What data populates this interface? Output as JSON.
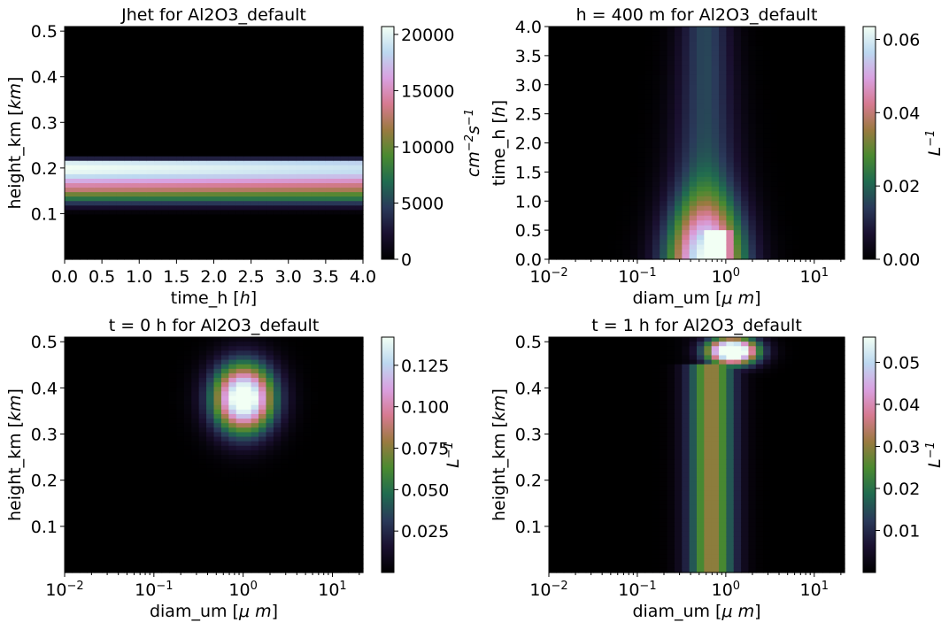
{
  "chart_data": [
    {
      "type": "heatmap",
      "title": "Jhet for Al2O3_default",
      "xlabel": "time_h [$h$]",
      "ylabel": "height_km [$km$]",
      "x_scale": "linear",
      "xlim": [
        0.0,
        4.0
      ],
      "ylim": [
        0.0,
        0.51
      ],
      "xticks": [
        "0.0",
        "0.5",
        "1.0",
        "1.5",
        "2.0",
        "2.5",
        "3.0",
        "3.5",
        "4.0"
      ],
      "xtick_values": [
        0.0,
        0.5,
        1.0,
        1.5,
        2.0,
        2.5,
        3.0,
        3.5,
        4.0
      ],
      "yticks": [
        "0.1",
        "0.2",
        "0.3",
        "0.4",
        "0.5"
      ],
      "ytick_values": [
        0.1,
        0.2,
        0.3,
        0.4,
        0.5
      ],
      "colorbar": {
        "label": "cm^{-2}s^{-1}",
        "min": 0,
        "max": 20700,
        "ticks": [
          "0",
          "5000",
          "10000",
          "15000",
          "20000"
        ],
        "tick_values": [
          0,
          5000,
          10000,
          15000,
          20000
        ]
      }
    },
    {
      "type": "heatmap",
      "title": "h = 400 m for Al2O3_default",
      "xlabel": "diam_um [$\\mu m$]",
      "ylabel": "time_h [$h$]",
      "x_scale": "log",
      "xlim": [
        0.01,
        22
      ],
      "ylim": [
        0.0,
        4.0
      ],
      "xticks": [
        "10^{-2}",
        "10^{-1}",
        "10^{0}",
        "10^{1}"
      ],
      "xtick_values": [
        0.01,
        0.1,
        1,
        10
      ],
      "yticks": [
        "0.0",
        "0.5",
        "1.0",
        "1.5",
        "2.0",
        "2.5",
        "3.0",
        "3.5",
        "4.0"
      ],
      "ytick_values": [
        0.0,
        0.5,
        1.0,
        1.5,
        2.0,
        2.5,
        3.0,
        3.5,
        4.0
      ],
      "colorbar": {
        "label": "L^{-1}",
        "min": 0,
        "max": 0.0635,
        "ticks": [
          "0.00",
          "0.02",
          "0.04",
          "0.06"
        ],
        "tick_values": [
          0.0,
          0.02,
          0.04,
          0.06
        ]
      }
    },
    {
      "type": "heatmap",
      "title": "t = 0 h for Al2O3_default",
      "xlabel": "diam_um [$\\mu m$]",
      "ylabel": "height_km [$km$]",
      "x_scale": "log",
      "xlim": [
        0.01,
        22
      ],
      "ylim": [
        0.0,
        0.51
      ],
      "xticks": [
        "10^{-2}",
        "10^{-1}",
        "10^{0}",
        "10^{1}"
      ],
      "xtick_values": [
        0.01,
        0.1,
        1,
        10
      ],
      "yticks": [
        "0.1",
        "0.2",
        "0.3",
        "0.4",
        "0.5"
      ],
      "ytick_values": [
        0.1,
        0.2,
        0.3,
        0.4,
        0.5
      ],
      "colorbar": {
        "label": "L^{-1}",
        "min": 0.0,
        "max": 0.142,
        "ticks": [
          "0.025",
          "0.050",
          "0.075",
          "0.100",
          "0.125"
        ],
        "tick_values": [
          0.025,
          0.05,
          0.075,
          0.1,
          0.125
        ]
      }
    },
    {
      "type": "heatmap",
      "title": "t = 1 h for Al2O3_default",
      "xlabel": "diam_um [$\\mu m$]",
      "ylabel": "height_km [$km$]",
      "x_scale": "log",
      "xlim": [
        0.01,
        22
      ],
      "ylim": [
        0.0,
        0.51
      ],
      "xticks": [
        "10^{-2}",
        "10^{-1}",
        "10^{0}",
        "10^{1}"
      ],
      "xtick_values": [
        0.01,
        0.1,
        1,
        10
      ],
      "yticks": [
        "0.1",
        "0.2",
        "0.3",
        "0.4",
        "0.5"
      ],
      "ytick_values": [
        0.1,
        0.2,
        0.3,
        0.4,
        0.5
      ],
      "colorbar": {
        "label": "L^{-1}",
        "min": 0.0,
        "max": 0.056,
        "ticks": [
          "0.01",
          "0.02",
          "0.03",
          "0.04",
          "0.05"
        ],
        "tick_values": [
          0.01,
          0.02,
          0.03,
          0.04,
          0.05
        ]
      }
    }
  ],
  "colors": {
    "colormap_stops": [
      "#000000",
      "#1a1030",
      "#2a3a5a",
      "#206b50",
      "#4a8a30",
      "#9a7a40",
      "#d67a90",
      "#d9a0e0",
      "#bcd8f0",
      "#f2fff4"
    ],
    "frame": "#000000"
  }
}
